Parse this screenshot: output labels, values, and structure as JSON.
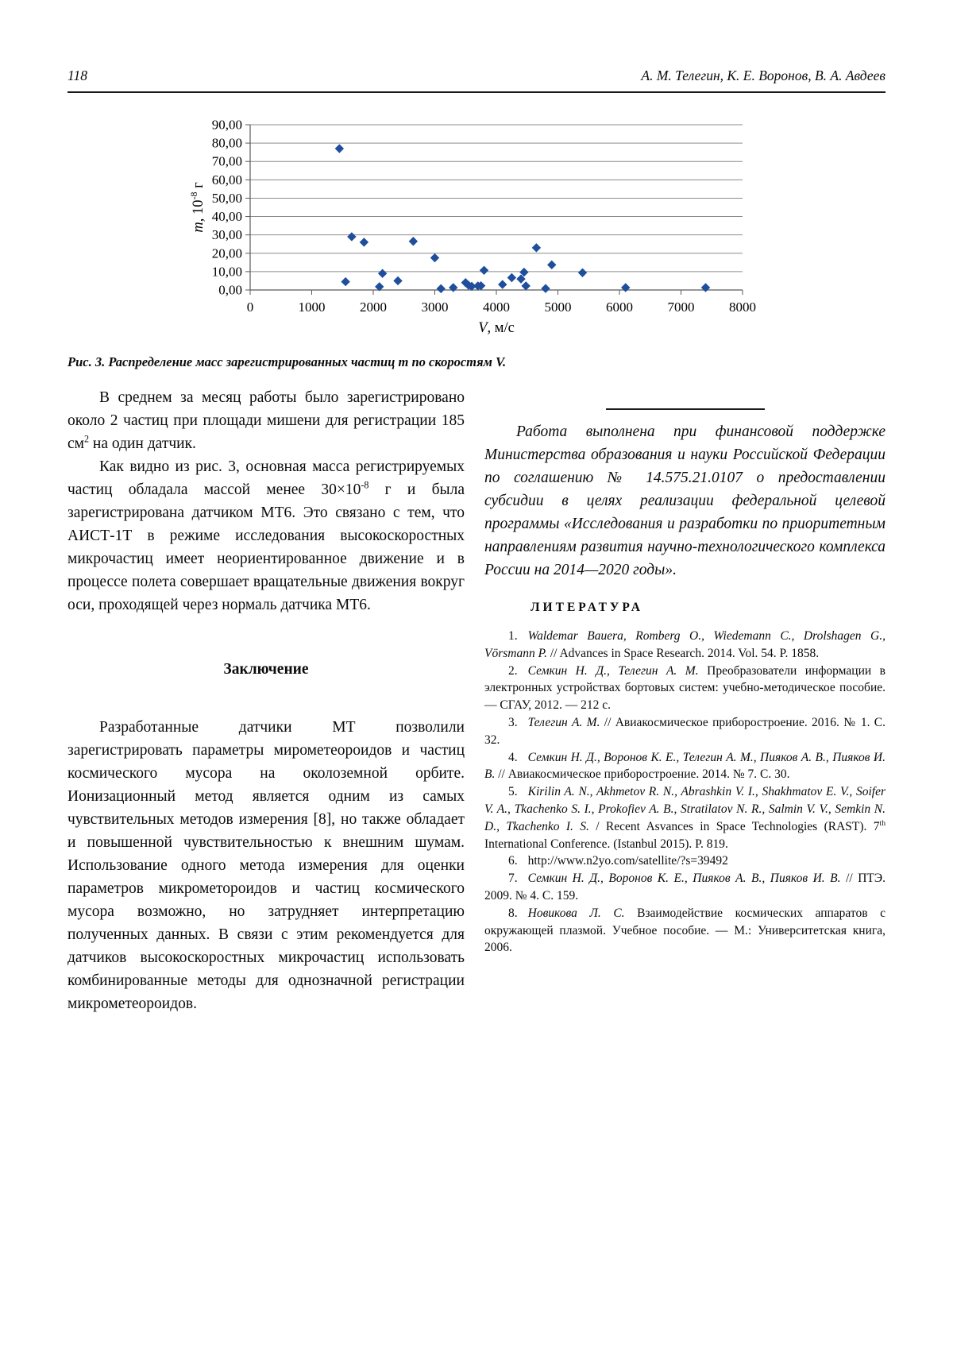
{
  "header": {
    "page_number": "118",
    "authors": "А. М. Телегин, К. Е. Воронов, В. А. Авдеев"
  },
  "figure": {
    "caption": "Рис. 3. Распределение масс зарегистрированных частиц m по скоростям V."
  },
  "chart_data": {
    "type": "scatter",
    "title": "",
    "xlabel": "V, м/с",
    "ylabel": "m, 10⁻⁸ г",
    "xlabel_italic": "V",
    "xlabel_rest": ", м/с",
    "ylabel_parts": {
      "italic": "m",
      "pre_sup": ", 10",
      "sup": "-8",
      "post_sup": " г"
    },
    "xlim": [
      0,
      8000
    ],
    "ylim": [
      0,
      90
    ],
    "xticks": [
      0,
      1000,
      2000,
      3000,
      4000,
      5000,
      6000,
      7000,
      8000
    ],
    "yticks": [
      0,
      10,
      20,
      30,
      40,
      50,
      60,
      70,
      80,
      90
    ],
    "ytick_labels": [
      "0,00",
      "10,00",
      "20,00",
      "30,00",
      "40,00",
      "50,00",
      "60,00",
      "70,00",
      "80,00",
      "90,00"
    ],
    "grid": "horizontal",
    "legend": "none",
    "marker": {
      "shape": "diamond",
      "color": "#1F4E9C",
      "size": 10
    },
    "colors": {
      "grid": "#8c8c8c",
      "axis": "#595959"
    },
    "points": [
      [
        1450,
        77.0
      ],
      [
        1550,
        4.5
      ],
      [
        1650,
        29.0
      ],
      [
        1850,
        26.0
      ],
      [
        2100,
        1.8
      ],
      [
        2150,
        9.0
      ],
      [
        2400,
        5.0
      ],
      [
        2650,
        26.5
      ],
      [
        3000,
        17.5
      ],
      [
        3100,
        0.7
      ],
      [
        3300,
        1.3
      ],
      [
        3500,
        4.0
      ],
      [
        3550,
        2.5
      ],
      [
        3600,
        2.0
      ],
      [
        3700,
        2.2
      ],
      [
        3750,
        2.3
      ],
      [
        3800,
        10.7
      ],
      [
        4100,
        3.0
      ],
      [
        4250,
        6.7
      ],
      [
        4400,
        6.0
      ],
      [
        4450,
        9.7
      ],
      [
        4480,
        2.2
      ],
      [
        4650,
        23.0
      ],
      [
        4800,
        0.8
      ],
      [
        4900,
        13.7
      ],
      [
        5400,
        9.4
      ],
      [
        6100,
        1.3
      ],
      [
        7400,
        1.3
      ]
    ]
  },
  "left_column": {
    "para1": {
      "t1": "В среднем за месяц работы было зарегистрировано около 2 частиц при площади мишени для регистрации 185 см",
      "sup": "2",
      "t2": " на один датчик."
    },
    "para2": {
      "t1": "Как видно из рис. 3, основная масса регистрируемых частиц обладала массой менее 30×10",
      "sup": "-8",
      "t2": " г и была зарегистрирована датчиком МТ6. Это связано с тем, что АИСТ-1Т в режиме исследования высокоскоростных микрочастиц имеет неориентированное движение и в процессе полета совершает вращательные движения вокруг оси, проходящей через нормаль датчика МТ6."
    },
    "heading": "Заключение",
    "para3": "Разработанные датчики МТ позволили зарегистрировать параметры мирометеороидов и частиц космического мусора на околоземной орбите. Ионизационный метод является одним из самых чувствительных методов измерения [8], но также обладает и повышенной чувствительностью к внешним шумам. Использование одного метода измерения для оценки параметров микрометороидов и частиц космического мусора возможно, но затрудняет интерпретацию полученных данных. В связи с этим рекомендуется для датчиков высокоскоростных микрочастиц использовать комбинированные методы для однозначной регистрации микрометеороидов."
  },
  "right_column": {
    "funding": "Работа выполнена при финансовой поддержке Министерства образования и науки Российской Федерации по соглашению № 14.575.21.0107 о предоставлении субсидии в целях реализации федеральной целевой программы «Исследования и разработки по приоритетным направлениям развития научно-технологического комплекса России на 2014—2020 годы».",
    "literature_heading": "ЛИТЕРАТУРА",
    "references": [
      {
        "num": "1.",
        "authors": "Waldemar Bauera, Romberg O., Wiedemann C., Drolshagen G., Vörsmann P. ",
        "text": "// Advances in Space Research. 2014. Vol. 54. P. 1858."
      },
      {
        "num": "2.",
        "authors": "Семкин Н. Д., Телегин А. М. ",
        "text": "Преобразователи информации в электронных устройствах бортовых систем: учебно-методическое пособие. — СГАУ, 2012. — 212 с."
      },
      {
        "num": "3.",
        "authors": "Телегин А. М. ",
        "text": "// Авиакосмическое приборостроение. 2016. № 1. С. 32."
      },
      {
        "num": "4.",
        "authors": "Семкин Н. Д., Воронов К. Е., Телегин А. М., Пияков А. В., Пияков И. В. ",
        "text": "// Авиакосмическое приборостроение. 2014. № 7. С. 30."
      },
      {
        "num": "5.",
        "authors": "Kirilin A. N., Akhmetov R. N., Abrashkin V. I., Shakhmatov E. V., Soifer V. A., Tkachenko S. I., Prokofiev A. B., Stratilatov N. R., Salmin V. V., Semkin N. D., Tkachenko I. S. ",
        "text": "/ Recent Asvances in Space Technologies (RAST). 7",
        "sup": "th",
        "text2": " International Conference. (Istanbul 2015). P. 819."
      },
      {
        "num": "6.",
        "authors": "",
        "text": "http://www.n2yo.com/satellite/?s=39492"
      },
      {
        "num": "7.",
        "authors": "Семкин Н. Д., Воронов К. Е., Пияков А. В., Пияков И. В. ",
        "text": "// ПТЭ. 2009. № 4. С. 159."
      },
      {
        "num": "8.",
        "authors": "Новикова Л. С. ",
        "text": "Взаимодействие космических аппаратов с окружающей плазмой. Учебное пособие. — М.: Университетская книга, 2006."
      }
    ]
  }
}
